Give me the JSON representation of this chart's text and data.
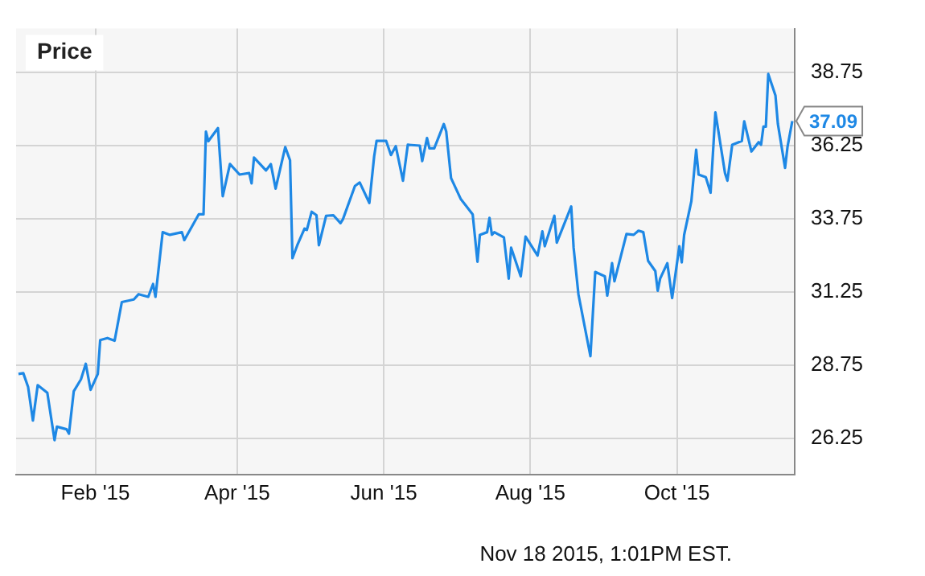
{
  "chart_data": {
    "type": "line",
    "title": "Price",
    "annotations": [
      {
        "text": "37.09",
        "x": "2015-11-18",
        "y": 37.09
      },
      "Nov 18 2015, 1:01PM EST."
    ],
    "x": [
      "2014-12-31",
      "2015-01-02",
      "2015-01-04",
      "2015-01-06",
      "2015-01-08",
      "2015-01-12",
      "2015-01-15",
      "2015-01-16",
      "2015-01-20",
      "2015-01-21",
      "2015-01-23",
      "2015-01-26",
      "2015-01-28",
      "2015-01-30",
      "2015-02-02",
      "2015-02-03",
      "2015-02-06",
      "2015-02-09",
      "2015-02-10",
      "2015-02-12",
      "2015-02-17",
      "2015-02-19",
      "2015-02-23",
      "2015-02-25",
      "2015-02-26",
      "2015-03-01",
      "2015-03-04",
      "2015-03-09",
      "2015-03-10",
      "2015-03-16",
      "2015-03-18",
      "2015-03-19",
      "2015-03-20",
      "2015-03-24",
      "2015-03-26",
      "2015-03-29",
      "2015-04-02",
      "2015-04-06",
      "2015-04-07",
      "2015-04-08",
      "2015-04-13",
      "2015-04-15",
      "2015-04-17",
      "2015-04-21",
      "2015-04-23",
      "2015-04-24",
      "2015-04-26",
      "2015-04-29",
      "2015-04-30",
      "2015-05-02",
      "2015-05-04",
      "2015-05-05",
      "2015-05-08",
      "2015-05-11",
      "2015-05-14",
      "2015-05-15",
      "2015-05-20",
      "2015-05-22",
      "2015-05-26",
      "2015-05-28",
      "2015-05-29",
      "2015-06-02",
      "2015-06-04",
      "2015-06-06",
      "2015-06-09",
      "2015-06-11",
      "2015-06-16",
      "2015-06-17",
      "2015-06-19",
      "2015-06-20",
      "2015-06-22",
      "2015-06-26",
      "2015-06-27",
      "2015-06-29",
      "2015-07-03",
      "2015-07-08",
      "2015-07-10",
      "2015-07-11",
      "2015-07-14",
      "2015-07-15",
      "2015-07-16",
      "2015-07-17",
      "2015-07-21",
      "2015-07-23",
      "2015-07-24",
      "2015-07-28",
      "2015-07-30",
      "2015-08-04",
      "2015-08-06",
      "2015-08-07",
      "2015-08-11",
      "2015-08-12",
      "2015-08-18",
      "2015-08-19",
      "2015-08-21",
      "2015-08-26",
      "2015-08-28",
      "2015-09-01",
      "2015-09-02",
      "2015-09-04",
      "2015-09-05",
      "2015-09-10",
      "2015-09-13",
      "2015-09-15",
      "2015-09-17",
      "2015-09-19",
      "2015-09-22",
      "2015-09-23",
      "2015-09-24",
      "2015-09-27",
      "2015-09-29",
      "2015-10-02",
      "2015-10-03",
      "2015-10-04",
      "2015-10-07",
      "2015-10-09",
      "2015-10-10",
      "2015-10-13",
      "2015-10-15",
      "2015-10-17",
      "2015-10-21",
      "2015-10-22",
      "2015-10-24",
      "2015-10-28",
      "2015-10-29",
      "2015-11-01",
      "2015-11-04",
      "2015-11-05",
      "2015-11-06",
      "2015-11-07",
      "2015-11-08",
      "2015-11-11",
      "2015-11-12",
      "2015-11-15",
      "2015-11-16",
      "2015-11-18"
    ],
    "series": [
      {
        "color": "#1e88e5",
        "values": [
          28.44,
          28.47,
          28.0,
          26.85,
          28.06,
          27.8,
          26.18,
          26.64,
          26.55,
          26.4,
          27.85,
          28.26,
          28.79,
          27.9,
          28.44,
          29.6,
          29.67,
          29.58,
          30.02,
          30.9,
          30.99,
          31.17,
          31.08,
          31.52,
          31.08,
          33.29,
          33.2,
          33.29,
          33.02,
          33.9,
          33.9,
          36.73,
          36.4,
          36.85,
          34.52,
          35.62,
          35.26,
          35.31,
          34.96,
          35.84,
          35.4,
          35.62,
          34.78,
          36.2,
          35.75,
          32.4,
          32.84,
          33.41,
          33.37,
          33.99,
          33.87,
          32.84,
          33.85,
          33.87,
          33.6,
          33.73,
          34.87,
          34.99,
          34.29,
          35.88,
          36.41,
          36.41,
          35.93,
          36.23,
          35.05,
          36.28,
          36.25,
          35.72,
          36.51,
          36.16,
          36.16,
          36.99,
          36.73,
          35.14,
          34.43,
          33.9,
          32.28,
          33.2,
          33.29,
          33.78,
          33.2,
          33.29,
          33.11,
          31.7,
          32.76,
          31.78,
          33.14,
          32.49,
          33.32,
          32.81,
          33.85,
          32.93,
          34.17,
          32.76,
          31.17,
          29.05,
          31.93,
          31.78,
          31.12,
          32.23,
          31.61,
          33.23,
          33.2,
          33.34,
          33.29,
          32.31,
          31.96,
          31.29,
          31.7,
          32.23,
          31.04,
          32.81,
          32.26,
          33.2,
          34.35,
          36.11,
          35.26,
          35.17,
          34.64,
          37.39,
          35.31,
          35.05,
          36.28,
          36.41,
          37.08,
          36.05,
          36.37,
          36.28,
          36.9,
          36.9,
          38.7,
          37.96,
          36.99,
          35.49,
          36.2,
          37.09
        ]
      }
    ],
    "xlim": [
      "2014-12-30",
      "2015-11-19"
    ],
    "xticks": [
      {
        "value": "2015-02-01",
        "label": "Feb '15"
      },
      {
        "value": "2015-04-01",
        "label": "Apr '15"
      },
      {
        "value": "2015-06-01",
        "label": "Jun '15"
      },
      {
        "value": "2015-08-01",
        "label": "Aug '15"
      },
      {
        "value": "2015-10-01",
        "label": "Oct '15"
      }
    ],
    "ylim": [
      25,
      40.25
    ],
    "yticks": [
      26.25,
      28.75,
      31.25,
      33.75,
      36.25,
      38.75
    ],
    "grid": true,
    "legend": false
  }
}
